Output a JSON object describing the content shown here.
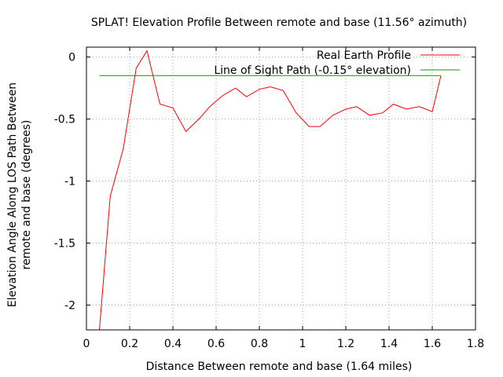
{
  "chart_data": {
    "type": "line",
    "title": "SPLAT! Elevation Profile Between remote   and base (11.56° azimuth)",
    "xlabel": "Distance Between remote   and base (1.64 miles)",
    "ylabel_lines": [
      "Elevation Angle Along LOS Path Between",
      "remote   and base (degrees)"
    ],
    "xlim": [
      0,
      1.8
    ],
    "ylim": [
      -2.2,
      0.08
    ],
    "x_ticks": [
      0,
      0.2,
      0.4,
      0.6,
      0.8,
      1,
      1.2,
      1.4,
      1.6,
      1.8
    ],
    "x_tick_labels": [
      "0",
      "0.2",
      "0.4",
      "0.6",
      "0.8",
      "1",
      "1.2",
      "1.4",
      "1.6",
      "1.8"
    ],
    "y_ticks": [
      0,
      -0.5,
      -1,
      -1.5,
      -2
    ],
    "y_tick_labels": [
      "0",
      "-0.5",
      "-1",
      "-1.5",
      "-2"
    ],
    "grid": true,
    "legend_position": "top-right",
    "series": [
      {
        "name": "Real Earth Profile",
        "color": "#ff0000",
        "x": [
          0.06,
          0.11,
          0.17,
          0.23,
          0.28,
          0.34,
          0.4,
          0.46,
          0.52,
          0.57,
          0.63,
          0.69,
          0.74,
          0.8,
          0.85,
          0.91,
          0.97,
          1.03,
          1.08,
          1.14,
          1.2,
          1.25,
          1.31,
          1.37,
          1.42,
          1.48,
          1.54,
          1.6,
          1.64
        ],
        "y": [
          -2.2,
          -1.12,
          -0.74,
          -0.09,
          0.05,
          -0.38,
          -0.41,
          -0.6,
          -0.5,
          -0.4,
          -0.31,
          -0.25,
          -0.32,
          -0.26,
          -0.24,
          -0.27,
          -0.45,
          -0.56,
          -0.56,
          -0.47,
          -0.42,
          -0.4,
          -0.47,
          -0.45,
          -0.38,
          -0.42,
          -0.4,
          -0.44,
          -0.15
        ]
      },
      {
        "name": "Line of Sight Path (-0.15° elevation)",
        "color": "#00a000",
        "x": [
          0.06,
          1.64
        ],
        "y": [
          -0.15,
          -0.15
        ]
      }
    ]
  }
}
